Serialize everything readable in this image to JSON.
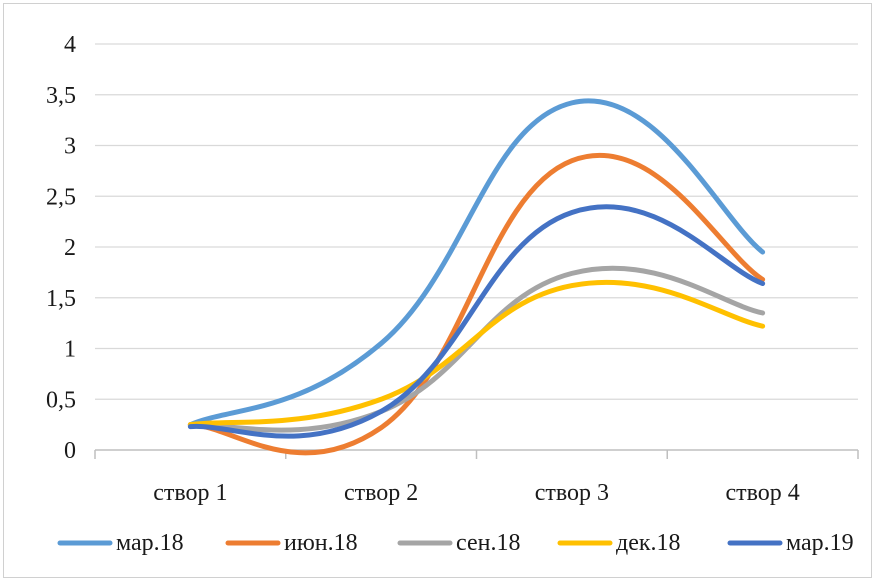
{
  "chart_data": {
    "type": "line",
    "smooth": true,
    "title": "",
    "xlabel": "",
    "ylabel": "",
    "categories": [
      "створ 1",
      "створ 2",
      "створ 3",
      "створ 4"
    ],
    "y_ticks": [
      "0",
      "0,5",
      "1",
      "1,5",
      "2",
      "2,5",
      "3",
      "3,5",
      "4"
    ],
    "ylim": [
      0,
      4
    ],
    "grid": true,
    "legend_position": "bottom",
    "series": [
      {
        "name": "мар.18",
        "color": "#5B9BD5",
        "values": [
          0.25,
          1.05,
          3.42,
          1.95
        ]
      },
      {
        "name": "июн.18",
        "color": "#ED7D31",
        "values": [
          0.25,
          0.22,
          2.85,
          1.68
        ]
      },
      {
        "name": "сен.18",
        "color": "#A5A5A5",
        "values": [
          0.24,
          0.38,
          1.74,
          1.35
        ]
      },
      {
        "name": "дек.18",
        "color": "#FFC000",
        "values": [
          0.25,
          0.5,
          1.62,
          1.22
        ]
      },
      {
        "name": "мар.19",
        "color": "#4472C4",
        "values": [
          0.23,
          0.38,
          2.34,
          1.64
        ]
      }
    ]
  }
}
